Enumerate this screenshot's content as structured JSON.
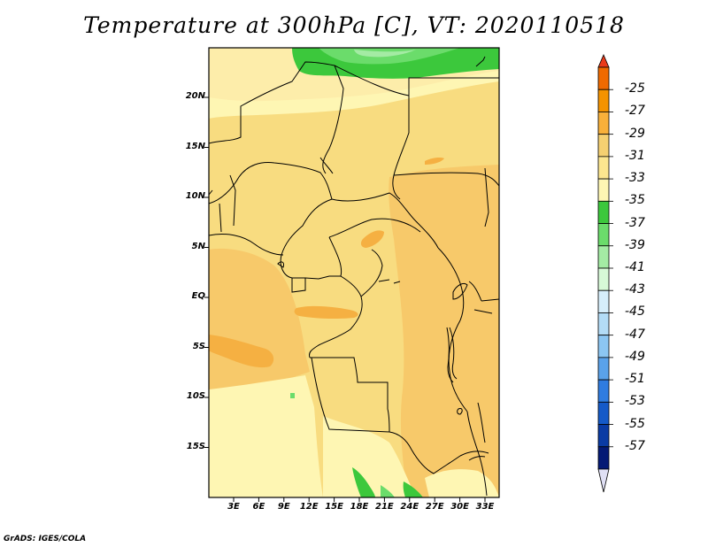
{
  "title": "Temperature at 300hPa [C], VT: 2020110518",
  "credit": "GrADS: IGES/COLA",
  "lat_labels": [
    "20N",
    "15N",
    "10N",
    "5N",
    "EQ",
    "5S",
    "10S",
    "15S"
  ],
  "lon_labels": [
    "3E",
    "6E",
    "9E",
    "12E",
    "15E",
    "18E",
    "21E",
    "24E",
    "27E",
    "30E",
    "33E"
  ],
  "colorbar": {
    "labels": [
      "-25",
      "-27",
      "-29",
      "-31",
      "-33",
      "-35",
      "-37",
      "-39",
      "-41",
      "-43",
      "-45",
      "-47",
      "-49",
      "-51",
      "-53",
      "-55",
      "-57"
    ],
    "colors": [
      "#f06a00",
      "#f49300",
      "#f8b03a",
      "#f5d071",
      "#fce68f",
      "#fef6b3",
      "#3cc83c",
      "#6bdc6b",
      "#a4eba4",
      "#d7f9d7",
      "#d6eefb",
      "#b3dcf6",
      "#8cc6f2",
      "#5aa2ea",
      "#2f7ce0",
      "#155ac8",
      "#0a3ba4",
      "#041a75"
    ],
    "top_arrow_color": "#ea3a1a",
    "bottom_arrow_color": "#e0e0f5"
  },
  "map_colors": {
    "background": "#f8dc80",
    "light": "#fdedaa",
    "pale": "#fef6b3",
    "warm": "#f7c96a",
    "warmer": "#f5b042",
    "green": "#3cc83c",
    "light_green": "#6bdc6b",
    "pale_green": "#a4eba4"
  }
}
